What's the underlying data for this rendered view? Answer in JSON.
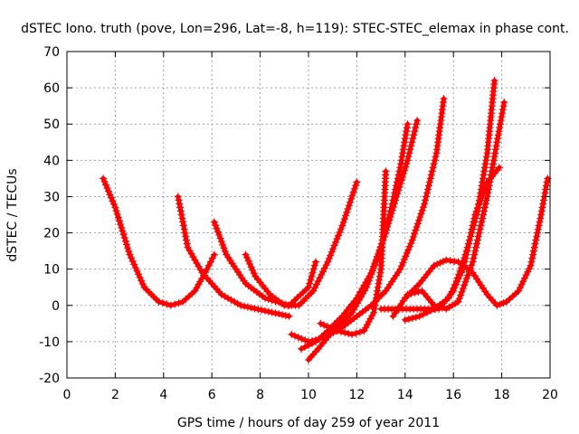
{
  "chart_data": {
    "type": "scatter",
    "title": "dSTEC Iono. truth (pove, Lon=296, Lat=-8, h=119): STEC-STEC_elemax in phase cont.",
    "xlabel": "GPS time / hours of day 259 of year 2011",
    "ylabel": "dSTEC  / TECUs",
    "xlim": [
      0,
      20
    ],
    "ylim": [
      -20,
      70
    ],
    "xticks": [
      0,
      2,
      4,
      6,
      8,
      10,
      12,
      14,
      16,
      18,
      20
    ],
    "yticks": [
      -20,
      -10,
      0,
      10,
      20,
      30,
      40,
      50,
      60,
      70
    ],
    "grid": true,
    "color": "#ff0000",
    "marker": "plus",
    "series": [
      {
        "x": [
          1.5,
          2.0,
          2.6,
          3.2,
          3.8,
          4.3,
          4.8,
          5.3,
          5.8,
          6.1
        ],
        "y": [
          35,
          27,
          14,
          5,
          1,
          0,
          1,
          4,
          10,
          14
        ]
      },
      {
        "x": [
          4.6,
          5.0,
          5.6,
          6.4,
          7.2,
          8.2,
          9.2
        ],
        "y": [
          30,
          16,
          9,
          3,
          0,
          -1.5,
          -3
        ]
      },
      {
        "x": [
          6.1,
          6.6,
          7.4,
          8.2,
          9.2,
          10.0,
          10.3
        ],
        "y": [
          23,
          14,
          6,
          2,
          0,
          5,
          12
        ]
      },
      {
        "x": [
          7.4,
          7.8,
          8.4,
          9.0,
          9.6,
          10.2,
          10.8,
          11.4,
          12.0
        ],
        "y": [
          14,
          8,
          3,
          0,
          0,
          4,
          12,
          22,
          34
        ]
      },
      {
        "x": [
          9.3,
          10.0,
          10.6,
          11.2,
          11.8,
          12.4,
          12.9,
          13.4,
          13.8,
          14.1
        ],
        "y": [
          -8,
          -10,
          -9,
          -6,
          -2,
          5,
          14,
          26,
          38,
          50
        ]
      },
      {
        "x": [
          9.7,
          10.3,
          10.8,
          11.4,
          12.0,
          12.6,
          13.1,
          13.6,
          14.1,
          14.5
        ],
        "y": [
          -12,
          -10,
          -7,
          -3,
          2,
          9,
          18,
          29,
          40,
          51
        ]
      },
      {
        "x": [
          10.0,
          10.4,
          10.9,
          11.4,
          12.0,
          12.6,
          13.2,
          13.8,
          14.3,
          14.8,
          15.3,
          15.6
        ],
        "y": [
          -15,
          -12,
          -8,
          -6,
          -3,
          0,
          4,
          10,
          18,
          28,
          42,
          57
        ]
      },
      {
        "x": [
          10.5,
          11.2,
          11.8,
          12.3,
          12.7,
          13.0,
          13.2
        ],
        "y": [
          -5,
          -7,
          -8,
          -7,
          -2,
          10,
          37
        ]
      },
      {
        "x": [
          13.0,
          13.6,
          14.2,
          14.8,
          15.4,
          16.0,
          16.5,
          17.0,
          17.4,
          17.7
        ],
        "y": [
          -1,
          -1,
          -1,
          -1,
          -1,
          4,
          14,
          26,
          42,
          62
        ]
      },
      {
        "x": [
          13.5,
          14.1,
          14.7,
          15.2,
          15.7,
          16.2,
          16.8,
          17.4,
          18.1
        ],
        "y": [
          -3,
          3,
          4,
          0,
          -1,
          1,
          12,
          30,
          56
        ]
      },
      {
        "x": [
          14.0,
          14.6,
          15.2,
          15.8,
          16.4,
          16.9,
          17.4,
          17.9
        ],
        "y": [
          -4,
          -3,
          -1,
          2,
          10,
          25,
          34,
          38
        ]
      },
      {
        "x": [
          14.0,
          14.6,
          15.2,
          15.7,
          16.2,
          16.8,
          17.4,
          17.8,
          18.2,
          18.7,
          19.2,
          19.6,
          19.9
        ],
        "y": [
          2,
          6,
          11,
          12.5,
          12,
          9,
          3,
          0,
          1,
          4,
          11,
          24,
          35
        ]
      }
    ]
  }
}
